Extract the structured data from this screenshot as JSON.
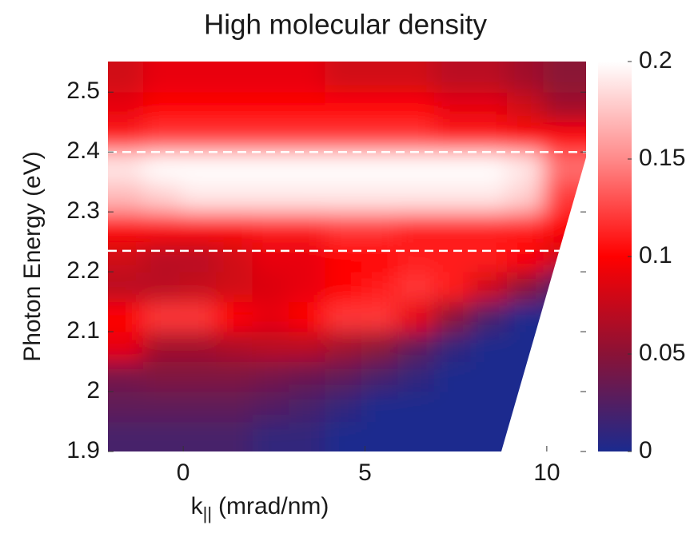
{
  "chart_data": {
    "type": "heatmap",
    "title": "High molecular density",
    "xlabel": "k",
    "xlabel_subscript": "||",
    "xlabel_unit": "(mrad/nm)",
    "ylabel": "Photon Energy (eV)",
    "xlim": [
      -2.07,
      11.08
    ],
    "ylim": [
      1.9,
      2.551
    ],
    "xticks": [
      0,
      5,
      10
    ],
    "yticks": [
      1.9,
      2,
      2.1,
      2.2,
      2.3,
      2.4,
      2.5
    ],
    "x": [
      -1.6,
      -0.6,
      0.4,
      1.4,
      2.4,
      3.4,
      4.4,
      5.4,
      6.4,
      7.4,
      8.4,
      9.4,
      10.4
    ],
    "y": [
      1.925,
      1.975,
      2.025,
      2.075,
      2.125,
      2.175,
      2.225,
      2.275,
      2.325,
      2.375,
      2.425,
      2.475,
      2.525
    ],
    "z": [
      [
        0.02,
        0.02,
        0.02,
        0.02,
        0.01,
        0.01,
        0,
        0,
        0,
        0,
        0,
        0,
        0
      ],
      [
        0.03,
        0.03,
        0.03,
        0.03,
        0.025,
        0.02,
        0.01,
        0,
        0,
        0,
        0,
        0,
        0
      ],
      [
        0.04,
        0.045,
        0.045,
        0.045,
        0.04,
        0.035,
        0.03,
        0.02,
        0.01,
        0,
        0,
        0,
        0
      ],
      [
        0.09,
        0.06,
        0.06,
        0.065,
        0.07,
        0.07,
        0.06,
        0.05,
        0.03,
        0.01,
        0,
        0,
        0
      ],
      [
        0.1,
        0.12,
        0.12,
        0.1,
        0.09,
        0.1,
        0.12,
        0.12,
        0.09,
        0.05,
        0.02,
        0,
        0
      ],
      [
        0.07,
        0.07,
        0.075,
        0.08,
        0.085,
        0.09,
        0.1,
        0.11,
        0.12,
        0.11,
        0.08,
        0.05,
        0.02
      ],
      [
        0.08,
        0.07,
        0.07,
        0.08,
        0.09,
        0.09,
        0.1,
        0.1,
        0.11,
        0.11,
        0.11,
        0.1,
        0.08
      ],
      [
        0.1,
        0.1,
        0.1,
        0.1,
        0.11,
        0.11,
        0.12,
        0.12,
        0.11,
        0.11,
        0.11,
        0.11,
        0.1
      ],
      [
        0.17,
        0.18,
        0.19,
        0.19,
        0.19,
        0.19,
        0.19,
        0.19,
        0.19,
        0.19,
        0.19,
        0.18,
        0.12
      ],
      [
        0.19,
        0.2,
        0.2,
        0.2,
        0.2,
        0.2,
        0.2,
        0.2,
        0.2,
        0.2,
        0.2,
        0.19,
        0.14
      ],
      [
        0.11,
        0.12,
        0.12,
        0.12,
        0.12,
        0.12,
        0.12,
        0.12,
        0.12,
        0.11,
        0.11,
        0.1,
        0.1
      ],
      [
        0.09,
        0.1,
        0.1,
        0.1,
        0.1,
        0.1,
        0.1,
        0.1,
        0.1,
        0.09,
        0.09,
        0.08,
        0.06
      ],
      [
        0.08,
        0.09,
        0.09,
        0.09,
        0.09,
        0.09,
        0.08,
        0.08,
        0.08,
        0.07,
        0.07,
        0.06,
        0.05
      ]
    ],
    "clim": [
      0,
      0.2
    ],
    "cticks": [
      0,
      0.05,
      0.1,
      0.15,
      0.2
    ],
    "colormap": [
      "#1b2a8e",
      "#8a1236",
      "#ff0000",
      "#ff8a8a",
      "#ffffff"
    ],
    "hlines": [
      2.4,
      2.235
    ],
    "hline_color": "#ffffff"
  }
}
